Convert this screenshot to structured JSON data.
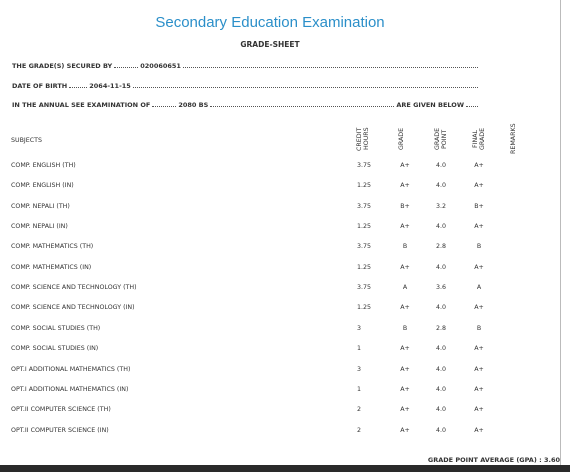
{
  "header": {
    "title": "Secondary Education Examination",
    "subtitle": "GRADE-SHEET"
  },
  "info": {
    "secured_by_label": "THE GRADE(S) SECURED BY",
    "symbol_number": "020060651",
    "dob_label": "DATE OF BIRTH",
    "dob": "2064-11-15",
    "exam_label": "IN THE ANNUAL SEE EXAMINATION OF",
    "exam_year": "2080 BS",
    "exam_suffix": "ARE GIVEN BELOW"
  },
  "table": {
    "columns": [
      "SUBJECTS",
      "CREDIT HOURS",
      "GRADE",
      "GRADE POINT",
      "FINAL GRADE",
      "REMARKS"
    ],
    "rows": [
      [
        "COMP. ENGLISH (TH)",
        "3.75",
        "A+",
        "4.0",
        "A+"
      ],
      [
        "COMP. ENGLISH (IN)",
        "1.25",
        "A+",
        "4.0",
        "A+"
      ],
      [
        "COMP. NEPALI (TH)",
        "3.75",
        "B+",
        "3.2",
        "B+"
      ],
      [
        "COMP. NEPALI (IN)",
        "1.25",
        "A+",
        "4.0",
        "A+"
      ],
      [
        "COMP. MATHEMATICS (TH)",
        "3.75",
        "B",
        "2.8",
        "B"
      ],
      [
        "COMP. MATHEMATICS (IN)",
        "1.25",
        "A+",
        "4.0",
        "A+"
      ],
      [
        "COMP. SCIENCE AND TECHNOLOGY (TH)",
        "3.75",
        "A",
        "3.6",
        "A"
      ],
      [
        "COMP. SCIENCE AND TECHNOLOGY (IN)",
        "1.25",
        "A+",
        "4.0",
        "A+"
      ],
      [
        "COMP. SOCIAL STUDIES (TH)",
        "3",
        "B",
        "2.8",
        "B"
      ],
      [
        "COMP. SOCIAL STUDIES (IN)",
        "1",
        "A+",
        "4.0",
        "A+"
      ],
      [
        "OPT.I ADDITIONAL MATHEMATICS (TH)",
        "3",
        "A+",
        "4.0",
        "A+"
      ],
      [
        "OPT.I ADDITIONAL MATHEMATICS (IN)",
        "1",
        "A+",
        "4.0",
        "A+"
      ],
      [
        "OPT.II COMPUTER SCIENCE (TH)",
        "2",
        "A+",
        "4.0",
        "A+"
      ],
      [
        "OPT.II COMPUTER SCIENCE (IN)",
        "2",
        "A+",
        "4.0",
        "A+"
      ]
    ]
  },
  "footer": {
    "gpa_label": "GRADE POINT AVERAGE (GPA) :",
    "gpa": "3.60"
  }
}
